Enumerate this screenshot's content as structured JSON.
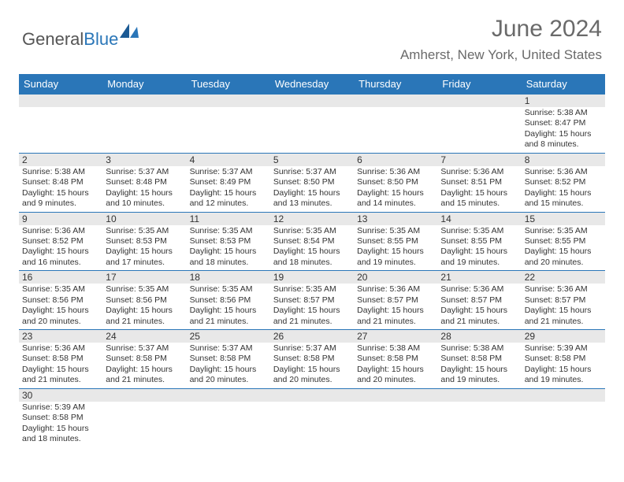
{
  "logo": {
    "text1": "General",
    "text2": "Blue"
  },
  "title": "June 2024",
  "location": "Amherst, New York, United States",
  "colors": {
    "header_bg": "#2a76b8",
    "header_text": "#ffffff",
    "daynum_bg": "#e8e8e8",
    "border": "#2a76b8",
    "body_text": "#333333",
    "title_text": "#6a6a6a"
  },
  "day_headers": [
    "Sunday",
    "Monday",
    "Tuesday",
    "Wednesday",
    "Thursday",
    "Friday",
    "Saturday"
  ],
  "weeks": [
    [
      null,
      null,
      null,
      null,
      null,
      null,
      {
        "d": "1",
        "sr": "5:38 AM",
        "ss": "8:47 PM",
        "dl": "15 hours and 8 minutes."
      }
    ],
    [
      {
        "d": "2",
        "sr": "5:38 AM",
        "ss": "8:48 PM",
        "dl": "15 hours and 9 minutes."
      },
      {
        "d": "3",
        "sr": "5:37 AM",
        "ss": "8:48 PM",
        "dl": "15 hours and 10 minutes."
      },
      {
        "d": "4",
        "sr": "5:37 AM",
        "ss": "8:49 PM",
        "dl": "15 hours and 12 minutes."
      },
      {
        "d": "5",
        "sr": "5:37 AM",
        "ss": "8:50 PM",
        "dl": "15 hours and 13 minutes."
      },
      {
        "d": "6",
        "sr": "5:36 AM",
        "ss": "8:50 PM",
        "dl": "15 hours and 14 minutes."
      },
      {
        "d": "7",
        "sr": "5:36 AM",
        "ss": "8:51 PM",
        "dl": "15 hours and 15 minutes."
      },
      {
        "d": "8",
        "sr": "5:36 AM",
        "ss": "8:52 PM",
        "dl": "15 hours and 15 minutes."
      }
    ],
    [
      {
        "d": "9",
        "sr": "5:36 AM",
        "ss": "8:52 PM",
        "dl": "15 hours and 16 minutes."
      },
      {
        "d": "10",
        "sr": "5:35 AM",
        "ss": "8:53 PM",
        "dl": "15 hours and 17 minutes."
      },
      {
        "d": "11",
        "sr": "5:35 AM",
        "ss": "8:53 PM",
        "dl": "15 hours and 18 minutes."
      },
      {
        "d": "12",
        "sr": "5:35 AM",
        "ss": "8:54 PM",
        "dl": "15 hours and 18 minutes."
      },
      {
        "d": "13",
        "sr": "5:35 AM",
        "ss": "8:55 PM",
        "dl": "15 hours and 19 minutes."
      },
      {
        "d": "14",
        "sr": "5:35 AM",
        "ss": "8:55 PM",
        "dl": "15 hours and 19 minutes."
      },
      {
        "d": "15",
        "sr": "5:35 AM",
        "ss": "8:55 PM",
        "dl": "15 hours and 20 minutes."
      }
    ],
    [
      {
        "d": "16",
        "sr": "5:35 AM",
        "ss": "8:56 PM",
        "dl": "15 hours and 20 minutes."
      },
      {
        "d": "17",
        "sr": "5:35 AM",
        "ss": "8:56 PM",
        "dl": "15 hours and 21 minutes."
      },
      {
        "d": "18",
        "sr": "5:35 AM",
        "ss": "8:56 PM",
        "dl": "15 hours and 21 minutes."
      },
      {
        "d": "19",
        "sr": "5:35 AM",
        "ss": "8:57 PM",
        "dl": "15 hours and 21 minutes."
      },
      {
        "d": "20",
        "sr": "5:36 AM",
        "ss": "8:57 PM",
        "dl": "15 hours and 21 minutes."
      },
      {
        "d": "21",
        "sr": "5:36 AM",
        "ss": "8:57 PM",
        "dl": "15 hours and 21 minutes."
      },
      {
        "d": "22",
        "sr": "5:36 AM",
        "ss": "8:57 PM",
        "dl": "15 hours and 21 minutes."
      }
    ],
    [
      {
        "d": "23",
        "sr": "5:36 AM",
        "ss": "8:58 PM",
        "dl": "15 hours and 21 minutes."
      },
      {
        "d": "24",
        "sr": "5:37 AM",
        "ss": "8:58 PM",
        "dl": "15 hours and 21 minutes."
      },
      {
        "d": "25",
        "sr": "5:37 AM",
        "ss": "8:58 PM",
        "dl": "15 hours and 20 minutes."
      },
      {
        "d": "26",
        "sr": "5:37 AM",
        "ss": "8:58 PM",
        "dl": "15 hours and 20 minutes."
      },
      {
        "d": "27",
        "sr": "5:38 AM",
        "ss": "8:58 PM",
        "dl": "15 hours and 20 minutes."
      },
      {
        "d": "28",
        "sr": "5:38 AM",
        "ss": "8:58 PM",
        "dl": "15 hours and 19 minutes."
      },
      {
        "d": "29",
        "sr": "5:39 AM",
        "ss": "8:58 PM",
        "dl": "15 hours and 19 minutes."
      }
    ],
    [
      {
        "d": "30",
        "sr": "5:39 AM",
        "ss": "8:58 PM",
        "dl": "15 hours and 18 minutes."
      },
      null,
      null,
      null,
      null,
      null,
      null
    ]
  ],
  "labels": {
    "sunrise": "Sunrise:",
    "sunset": "Sunset:",
    "daylight": "Daylight:"
  }
}
